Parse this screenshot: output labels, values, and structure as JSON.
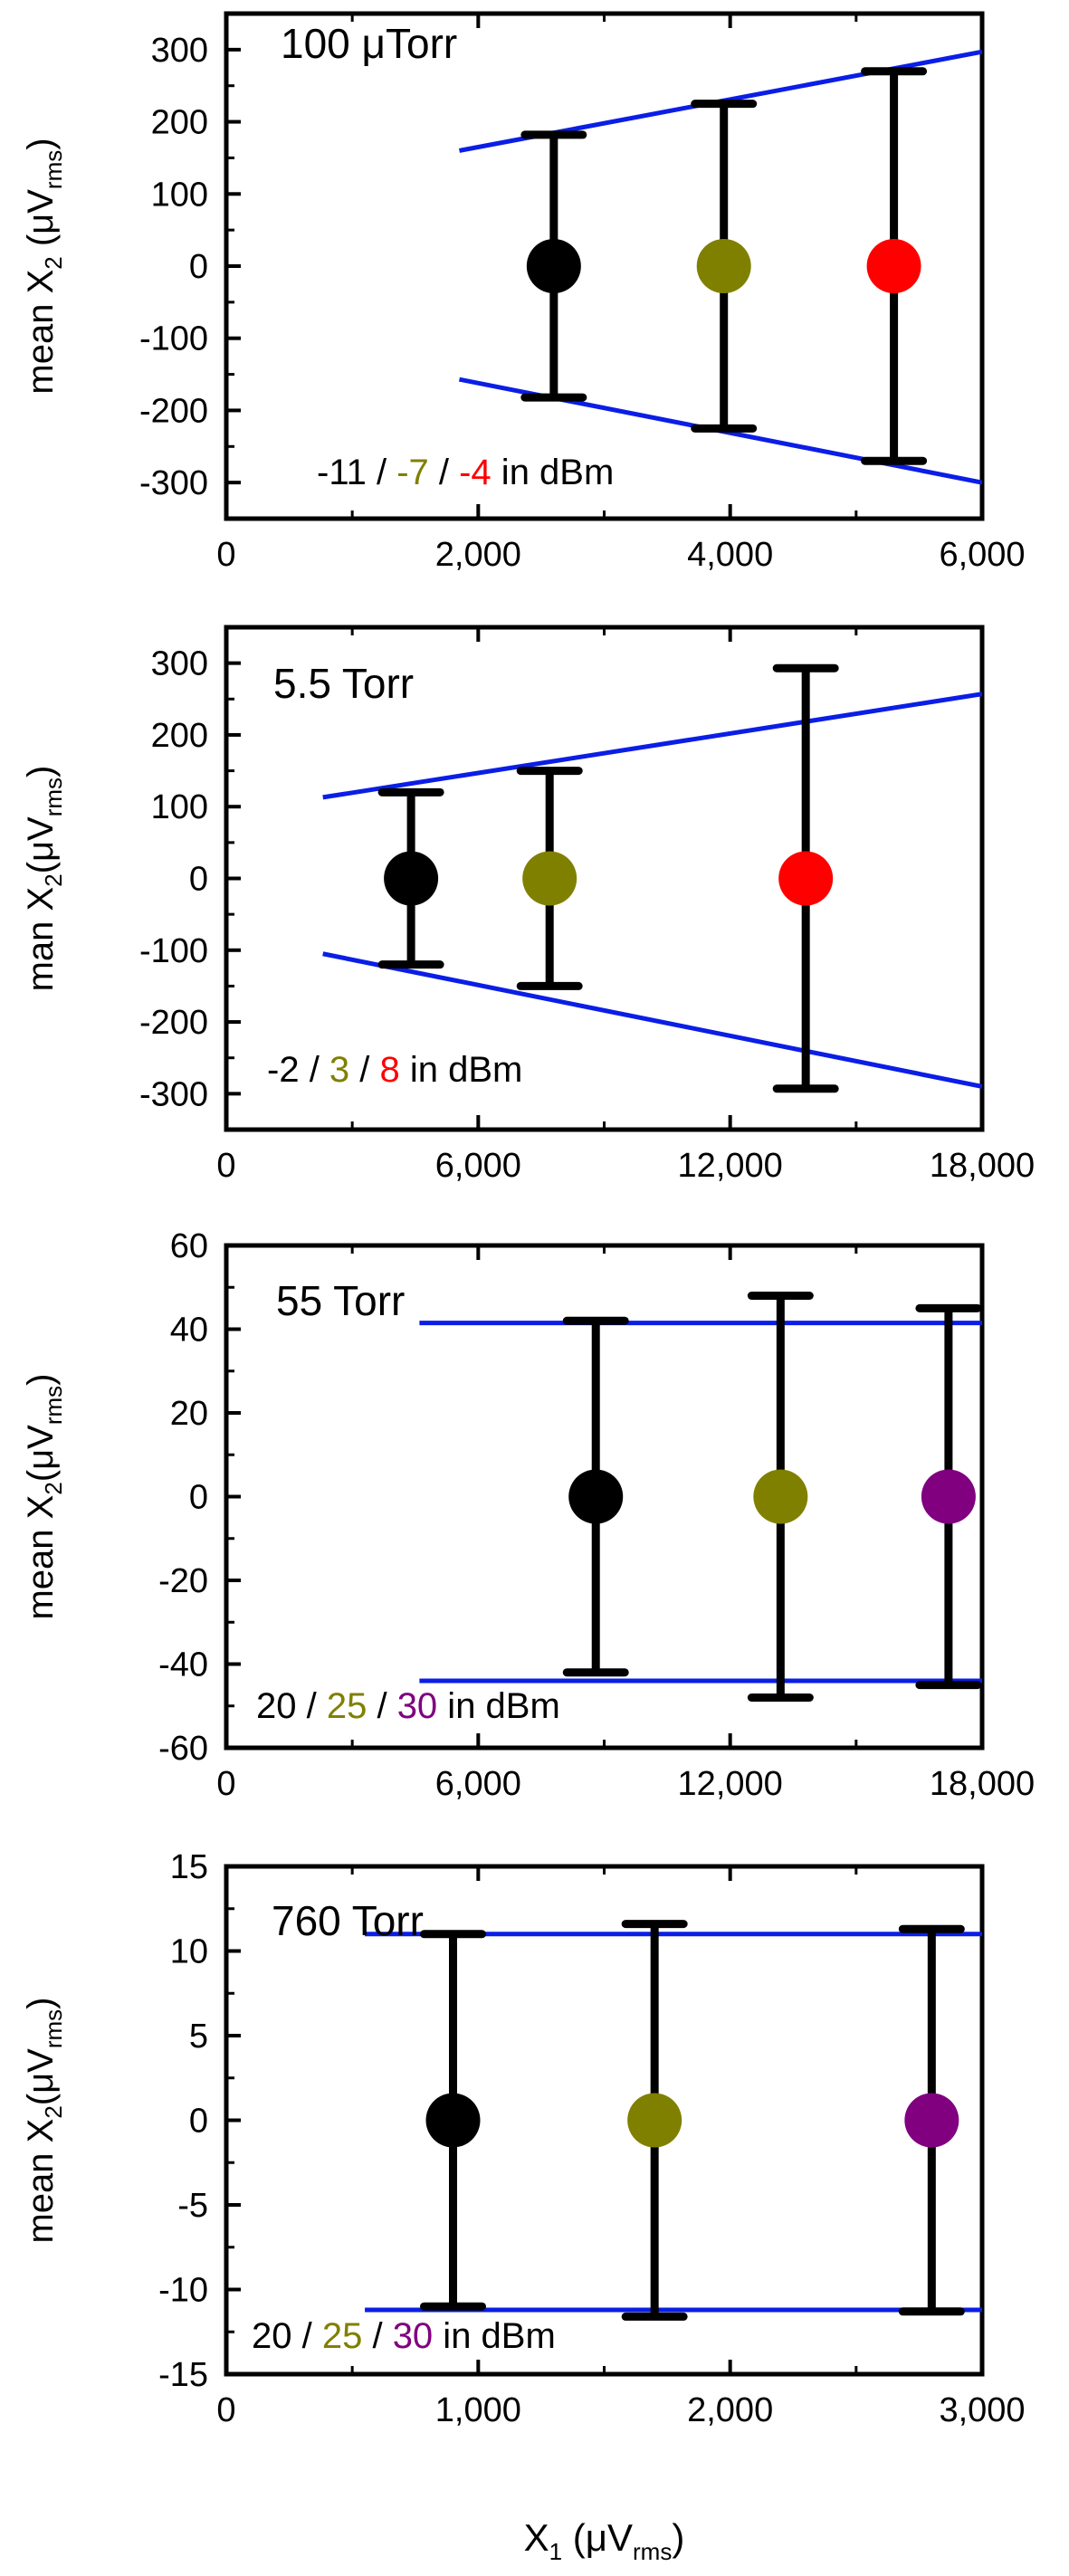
{
  "chart_data": [
    {
      "type": "scatter",
      "title": "100 μTorr",
      "ylabel": {
        "main": "mean X",
        "sub": "2",
        "rest": " (μV",
        "unit": "rms",
        "close": ")"
      },
      "xlim": [
        0,
        6000
      ],
      "ylim": [
        -350,
        350
      ],
      "xticks": [
        0,
        2000,
        4000,
        6000
      ],
      "xtick_labels": [
        "0",
        "2,000",
        "4,000",
        "6,000"
      ],
      "yticks": [
        -300,
        -200,
        -100,
        0,
        100,
        200,
        300
      ],
      "ytick_labels": [
        "-300",
        "-200",
        "-100",
        "0",
        "100",
        "200",
        "300"
      ],
      "points": [
        {
          "x": 2600,
          "y": 0,
          "err": 182,
          "color": "#000000"
        },
        {
          "x": 3950,
          "y": 0,
          "err": 225,
          "color": "#808000"
        },
        {
          "x": 5300,
          "y": 0,
          "err": 270,
          "color": "#ff0000"
        }
      ],
      "bounds": [
        {
          "x": [
            1850,
            6000
          ],
          "y": [
            160,
            297
          ]
        },
        {
          "x": [
            1850,
            6000
          ],
          "y": [
            -157,
            -300
          ]
        }
      ],
      "annotation": [
        {
          "text": "-11",
          "color": "#000000"
        },
        {
          "text": " / ",
          "color": "#000000"
        },
        {
          "text": "-7",
          "color": "#808000"
        },
        {
          "text": " / ",
          "color": "#000000"
        },
        {
          "text": "-4",
          "color": "#ff0000"
        },
        {
          "text": " in dBm",
          "color": "#000000"
        }
      ]
    },
    {
      "type": "scatter",
      "title": "5.5 Torr",
      "ylabel": {
        "main": "man X",
        "sub": "2",
        "rest": "(μV",
        "unit": "rms",
        "close": ")"
      },
      "xlim": [
        0,
        18000
      ],
      "ylim": [
        -350,
        350
      ],
      "xticks": [
        0,
        6000,
        12000,
        18000
      ],
      "xtick_labels": [
        "0",
        "6,000",
        "12,000",
        "18,000"
      ],
      "yticks": [
        -300,
        -200,
        -100,
        0,
        100,
        200,
        300
      ],
      "ytick_labels": [
        "-300",
        "-200",
        "-100",
        "0",
        "100",
        "200",
        "300"
      ],
      "points": [
        {
          "x": 4400,
          "y": 0,
          "err": 120,
          "color": "#000000"
        },
        {
          "x": 7700,
          "y": 0,
          "err": 150,
          "color": "#808000"
        },
        {
          "x": 13800,
          "y": 0,
          "err": 293,
          "color": "#ff0000"
        }
      ],
      "bounds": [
        {
          "x": [
            2300,
            18000
          ],
          "y": [
            113,
            257
          ]
        },
        {
          "x": [
            2300,
            18000
          ],
          "y": [
            -105,
            -290
          ]
        }
      ],
      "annotation": [
        {
          "text": "-2",
          "color": "#000000"
        },
        {
          "text": " / ",
          "color": "#000000"
        },
        {
          "text": "3",
          "color": "#808000"
        },
        {
          "text": " / ",
          "color": "#000000"
        },
        {
          "text": "8",
          "color": "#ff0000"
        },
        {
          "text": " in dBm",
          "color": "#000000"
        }
      ]
    },
    {
      "type": "scatter",
      "title": "55 Torr",
      "ylabel": {
        "main": "mean X",
        "sub": "2",
        "rest": "(μV",
        "unit": "rms",
        "close": ")"
      },
      "xlim": [
        0,
        18000
      ],
      "ylim": [
        -60,
        60
      ],
      "xticks": [
        0,
        6000,
        12000,
        18000
      ],
      "xtick_labels": [
        "0",
        "6,000",
        "12,000",
        "18,000"
      ],
      "yticks": [
        -60,
        -40,
        -20,
        0,
        20,
        40,
        60
      ],
      "ytick_labels": [
        "-60",
        "-40",
        "-20",
        "0",
        "20",
        "40",
        "60"
      ],
      "points": [
        {
          "x": 8800,
          "y": 0,
          "err": 42,
          "color": "#000000"
        },
        {
          "x": 13200,
          "y": 0,
          "err": 48,
          "color": "#808000"
        },
        {
          "x": 17200,
          "y": 0,
          "err": 45,
          "color": "#800080"
        }
      ],
      "bounds": [
        {
          "x": [
            4600,
            18000
          ],
          "y": [
            41.5,
            41.5
          ]
        },
        {
          "x": [
            4600,
            18000
          ],
          "y": [
            -44,
            -44
          ]
        }
      ],
      "annotation": [
        {
          "text": "20",
          "color": "#000000"
        },
        {
          "text": " / ",
          "color": "#000000"
        },
        {
          "text": "25",
          "color": "#808000"
        },
        {
          "text": " / ",
          "color": "#000000"
        },
        {
          "text": "30",
          "color": "#800080"
        },
        {
          "text": " in dBm",
          "color": "#000000"
        }
      ]
    },
    {
      "type": "scatter",
      "title": "760 Torr",
      "ylabel": {
        "main": "mean X",
        "sub": "2",
        "rest": "(μV",
        "unit": "rms",
        "close": ")"
      },
      "xlabel": {
        "main": "X",
        "sub": "1",
        "rest": " (μV",
        "unit": "rms",
        "close": ")"
      },
      "xlim": [
        0,
        3000
      ],
      "ylim": [
        -15,
        15
      ],
      "xticks": [
        0,
        1000,
        2000,
        3000
      ],
      "xtick_labels": [
        "0",
        "1,000",
        "2,000",
        "3,000"
      ],
      "yticks": [
        -15,
        -10,
        -5,
        0,
        5,
        10,
        15
      ],
      "ytick_labels": [
        "-15",
        "-10",
        "-5",
        "0",
        "5",
        "10",
        "15"
      ],
      "points": [
        {
          "x": 900,
          "y": 0,
          "err": 11,
          "color": "#000000"
        },
        {
          "x": 1700,
          "y": 0,
          "err": 11.6,
          "color": "#808000"
        },
        {
          "x": 2800,
          "y": 0,
          "err": 11.3,
          "color": "#800080"
        }
      ],
      "bounds": [
        {
          "x": [
            550,
            3000
          ],
          "y": [
            11,
            11
          ]
        },
        {
          "x": [
            550,
            3000
          ],
          "y": [
            -11.2,
            -11.2
          ]
        }
      ],
      "annotation": [
        {
          "text": "20",
          "color": "#000000"
        },
        {
          "text": " / ",
          "color": "#000000"
        },
        {
          "text": "25",
          "color": "#808000"
        },
        {
          "text": " / ",
          "color": "#000000"
        },
        {
          "text": "30",
          "color": "#800080"
        },
        {
          "text": " in dBm",
          "color": "#000000"
        }
      ]
    }
  ]
}
